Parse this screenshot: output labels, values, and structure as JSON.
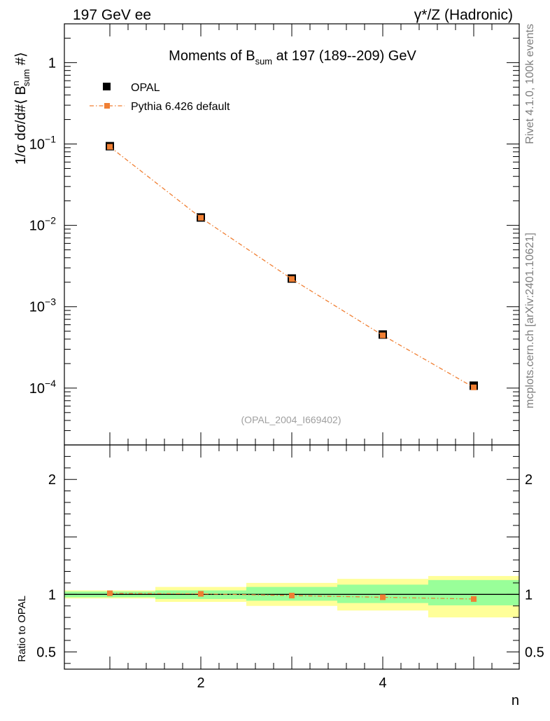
{
  "header": {
    "left": "197 GeV ee",
    "right": "γ*/Z (Hadronic)"
  },
  "side_labels": {
    "rivet": "Rivet 4.1.0,  100k events",
    "mcplots": "mcplots.cern.ch [arXiv:2401.10621]"
  },
  "chart_data": [
    {
      "type": "scatter",
      "panel": "main",
      "title": "Moments of B_sum at 197 (189--209) GeV",
      "title_parts": {
        "base": "Moments of B",
        "sub": "sum",
        "rest": " at 197 (189--209) GeV"
      },
      "ylabel": "1/σ  dσ/d#⟨ B^n_sum #⟩",
      "ylabel_parts": {
        "pre": "1/σ  dσ/d#⟨ B",
        "sup": "n",
        "sub": "sum",
        "post": " #⟩"
      },
      "xlabel": "n",
      "yscale": "log",
      "xlim": [
        0.5,
        5.5
      ],
      "ylim": [
        2e-05,
        3
      ],
      "y_ticks": [
        {
          "value": 1,
          "label": "1"
        },
        {
          "value": 0.1,
          "label": "10",
          "exp": "−1"
        },
        {
          "value": 0.01,
          "label": "10",
          "exp": "−2"
        },
        {
          "value": 0.001,
          "label": "10",
          "exp": "−3"
        },
        {
          "value": 0.0001,
          "label": "10",
          "exp": "−4"
        }
      ],
      "watermark": "(OPAL_2004_I669402)",
      "legend_position": "top-left",
      "series": [
        {
          "name": "OPAL",
          "color": "#000000",
          "x": [
            1,
            2,
            3,
            4,
            5
          ],
          "y": [
            0.094,
            0.0125,
            0.00222,
            0.000455,
            0.000107
          ]
        },
        {
          "name": "Pythia 6.426 default",
          "color": "#f07f33",
          "x": [
            1,
            2,
            3,
            4,
            5
          ],
          "y": [
            0.0925,
            0.0124,
            0.00219,
            0.000445,
            0.000102
          ]
        }
      ]
    },
    {
      "type": "line",
      "panel": "ratio",
      "ylabel": "Ratio to OPAL",
      "xlabel": "n",
      "xlim": [
        0.5,
        5.5
      ],
      "ylim": [
        0.35,
        2.3
      ],
      "y_ticks": [
        0.5,
        1,
        2
      ],
      "x_ticks": [
        2,
        4
      ],
      "bins": [
        [
          0.5,
          1.5
        ],
        [
          1.5,
          2.5
        ],
        [
          2.5,
          3.5
        ],
        [
          3.5,
          4.5
        ],
        [
          4.5,
          5.5
        ]
      ],
      "band_stat": [
        [
          0.975,
          1.025
        ],
        [
          0.96,
          1.035
        ],
        [
          0.945,
          1.065
        ],
        [
          0.925,
          1.085
        ],
        [
          0.905,
          1.125
        ]
      ],
      "band_total": [
        [
          0.965,
          1.035
        ],
        [
          0.935,
          1.065
        ],
        [
          0.9,
          1.1
        ],
        [
          0.86,
          1.135
        ],
        [
          0.8,
          1.16
        ]
      ],
      "colors": {
        "stat": "#99ff99",
        "total": "#ffff99",
        "line": "#000000"
      },
      "series": [
        {
          "name": "Pythia 6.426 default",
          "color": "#f07f33",
          "x": [
            1,
            2,
            3,
            4,
            5
          ],
          "y": [
            1.01,
            1.005,
            0.99,
            0.975,
            0.96
          ]
        }
      ]
    }
  ]
}
